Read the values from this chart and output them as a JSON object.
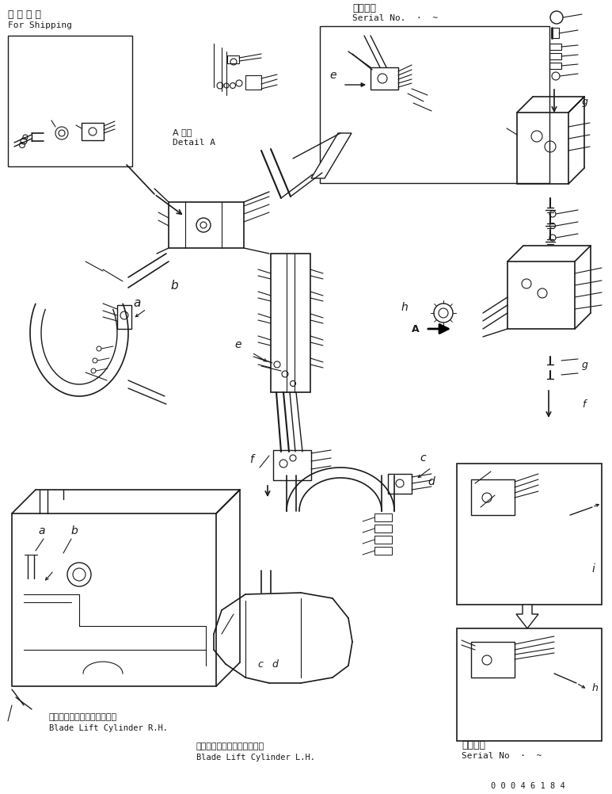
{
  "background_color": "#ffffff",
  "line_color": "#1a1a1a",
  "shipping_jp": "運 搦 部 品",
  "shipping_en": "For Shipping",
  "serial_jp": "適用号機",
  "serial_en": "Serial No.  ·  ~",
  "detail_jp": "A 詳細",
  "detail_en": "Detail A",
  "rh_jp": "ブレードリフトシリンダ　右",
  "rh_en": "Blade Lift Cylinder R.H.",
  "lh_jp": "ブレードリフトシリンダ　左",
  "lh_en": "Blade Lift Cylinder L.H.",
  "serial2_jp": "適用号機",
  "serial2_en": "Serial No  ·  ~",
  "part_number": "0 0 0 4 6 1 8 4",
  "label_a": "a",
  "label_b": "b",
  "label_c": "c",
  "label_d": "d",
  "label_e": "e",
  "label_f": "f",
  "label_g": "g",
  "label_h": "h",
  "label_i": "i",
  "label_A": "A"
}
